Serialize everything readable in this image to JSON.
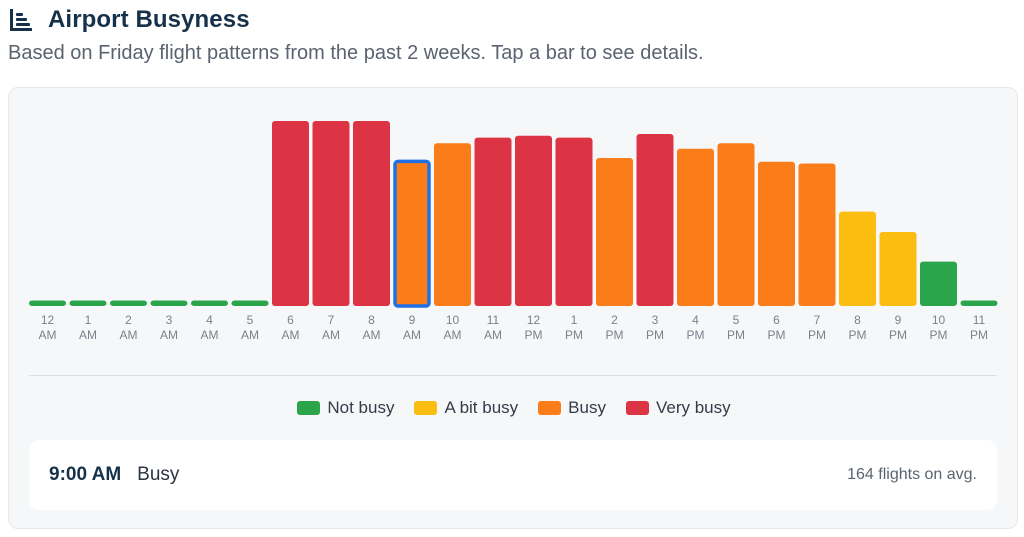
{
  "header": {
    "title": "Airport Busyness",
    "icon": "bar-chart-icon",
    "subtitle": "Based on Friday flight patterns from the past 2 weeks. Tap a bar to see details."
  },
  "colors": {
    "not_busy": "#2ba44a",
    "a_bit_busy": "#fbbd10",
    "busy": "#fb7d1a",
    "very_busy": "#dc3444",
    "selected_outline": "#1f6fe5",
    "title": "#16324a"
  },
  "legend": [
    {
      "label": "Not busy",
      "level": "not_busy"
    },
    {
      "label": "A bit busy",
      "level": "a_bit_busy"
    },
    {
      "label": "Busy",
      "level": "busy"
    },
    {
      "label": "Very busy",
      "level": "very_busy"
    }
  ],
  "chart_data": {
    "type": "bar",
    "categories": [
      [
        "12",
        "AM"
      ],
      [
        "1",
        "AM"
      ],
      [
        "2",
        "AM"
      ],
      [
        "3",
        "AM"
      ],
      [
        "4",
        "AM"
      ],
      [
        "5",
        "AM"
      ],
      [
        "6",
        "AM"
      ],
      [
        "7",
        "AM"
      ],
      [
        "8",
        "AM"
      ],
      [
        "9",
        "AM"
      ],
      [
        "10",
        "AM"
      ],
      [
        "11",
        "AM"
      ],
      [
        "12",
        "PM"
      ],
      [
        "1",
        "PM"
      ],
      [
        "2",
        "PM"
      ],
      [
        "3",
        "PM"
      ],
      [
        "4",
        "PM"
      ],
      [
        "5",
        "PM"
      ],
      [
        "6",
        "PM"
      ],
      [
        "7",
        "PM"
      ],
      [
        "8",
        "PM"
      ],
      [
        "9",
        "PM"
      ],
      [
        "10",
        "PM"
      ],
      [
        "11",
        "PM"
      ]
    ],
    "values": [
      3,
      3,
      3,
      3,
      3,
      3,
      100,
      100,
      100,
      79,
      88,
      91,
      92,
      91,
      80,
      93,
      85,
      88,
      78,
      77,
      51,
      40,
      24,
      3
    ],
    "levels": [
      "not_busy",
      "not_busy",
      "not_busy",
      "not_busy",
      "not_busy",
      "not_busy",
      "very_busy",
      "very_busy",
      "very_busy",
      "busy",
      "busy",
      "very_busy",
      "very_busy",
      "very_busy",
      "busy",
      "very_busy",
      "busy",
      "busy",
      "busy",
      "busy",
      "a_bit_busy",
      "a_bit_busy",
      "not_busy",
      "not_busy"
    ],
    "selected_index": 9,
    "ylim": [
      0,
      100
    ],
    "grid": false,
    "legend_position": "bottom-center"
  },
  "detail": {
    "time": "9:00 AM",
    "level": "Busy",
    "flights": "164 flights on avg."
  }
}
